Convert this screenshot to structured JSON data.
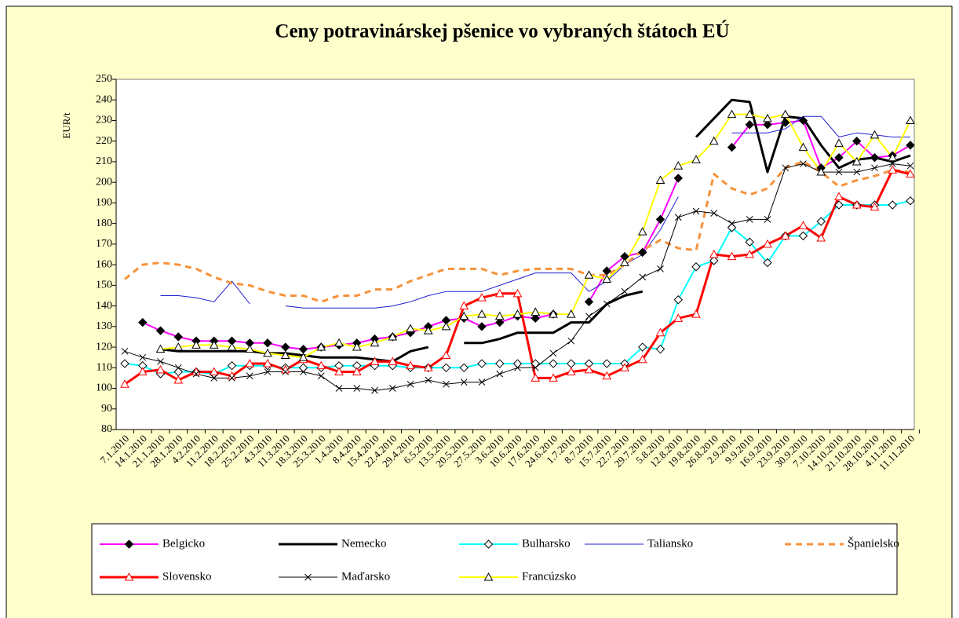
{
  "chart_data": {
    "type": "line",
    "title": "Ceny potravinárskej pšenice vo vybraných štátoch EÚ",
    "y_label": "EUR/t",
    "categories": [
      "7.1.2010",
      "14.1.2010",
      "21.1.2010",
      "28.1.2010",
      "4.2.2010",
      "11.2.2010",
      "18.2.2010",
      "25.2.2010",
      "4.3.2010",
      "11.3.2010",
      "18.3.2010",
      "25.3.2010",
      "1.4.2010",
      "8.4.2010",
      "15.4.2010",
      "22.4.2010",
      "29.4.2010",
      "6.5.2010",
      "13.5.2010",
      "20.5.2010",
      "27.5.2010",
      "3.6.2010",
      "10.6.2010",
      "17.6.2010",
      "24.6.2010",
      "1.7.2010",
      "8.7.2010",
      "15.7.2010",
      "22.7.2010",
      "29.7.2010",
      "5.8.2010",
      "12.8.2010",
      "19.8.2010",
      "26.8.2010",
      "2.9.2010",
      "9.9.2010",
      "16.9.2010",
      "23.9.2010",
      "30.9.2010",
      "7.10.2010",
      "14.10.2010",
      "21.10.2010",
      "28.10.2010",
      "4.11.2010",
      "11.11.2010"
    ],
    "ylim": [
      80,
      250
    ],
    "yticks": [
      80,
      90,
      100,
      110,
      120,
      130,
      140,
      150,
      160,
      170,
      180,
      190,
      200,
      210,
      220,
      230,
      240,
      250
    ],
    "grid": false,
    "legend": "bottom",
    "series": [
      {
        "name": "Belgicko",
        "color": "#ff00ff",
        "line_width": 2,
        "dash": false,
        "marker": "diamond-filled",
        "values": [
          null,
          132,
          128,
          125,
          123,
          123,
          123,
          122,
          122,
          120,
          119,
          120,
          121,
          122,
          124,
          125,
          127,
          130,
          133,
          134,
          130,
          132,
          135,
          134,
          136,
          null,
          142,
          157,
          164,
          166,
          182,
          202,
          null,
          null,
          217,
          228,
          228,
          229,
          230,
          207,
          212,
          220,
          212,
          213,
          218
        ]
      },
      {
        "name": "Nemecko",
        "color": "#000000",
        "line_width": 3,
        "dash": false,
        "marker": "none",
        "values": [
          null,
          null,
          119,
          118,
          118,
          118,
          118,
          118,
          117,
          117,
          116,
          115,
          115,
          115,
          114,
          113,
          118,
          120,
          null,
          122,
          122,
          124,
          127,
          127,
          127,
          132,
          132,
          141,
          145,
          147,
          null,
          null,
          222,
          231,
          240,
          239,
          205,
          232,
          231,
          218,
          207,
          211,
          212,
          210,
          213
        ]
      },
      {
        "name": "Bulharsko",
        "color": "#00ffff",
        "line_width": 2,
        "dash": false,
        "marker": "diamond-open",
        "values": [
          112,
          111,
          107,
          108,
          108,
          107,
          111,
          111,
          111,
          110,
          110,
          110,
          111,
          111,
          111,
          111,
          110,
          110,
          110,
          110,
          112,
          112,
          112,
          112,
          112,
          112,
          112,
          112,
          112,
          120,
          119,
          143,
          159,
          162,
          178,
          171,
          161,
          174,
          174,
          181,
          189,
          189,
          189,
          189,
          191
        ]
      },
      {
        "name": "Taliansko",
        "color": "#1f1fd0",
        "line_width": 1,
        "dash": false,
        "marker": "none",
        "values": [
          null,
          null,
          145,
          145,
          144,
          142,
          152,
          141,
          null,
          140,
          139,
          139,
          139,
          139,
          139,
          140,
          142,
          145,
          147,
          147,
          147,
          150,
          153,
          156,
          156,
          156,
          147,
          152,
          160,
          165,
          177,
          193,
          null,
          null,
          224,
          224,
          224,
          226,
          232,
          232,
          222,
          224,
          223,
          222,
          222
        ]
      },
      {
        "name": "Španielsko",
        "color": "#f7923a",
        "line_width": 3,
        "dash": true,
        "marker": "none",
        "values": [
          153,
          160,
          161,
          160,
          158,
          154,
          151,
          150,
          147,
          145,
          145,
          142,
          145,
          145,
          148,
          148,
          152,
          155,
          158,
          158,
          158,
          155,
          157,
          158,
          158,
          158,
          155,
          155,
          160,
          167,
          172,
          168,
          167,
          204,
          197,
          194,
          197,
          207,
          210,
          205,
          198,
          201,
          203,
          206,
          205
        ]
      },
      {
        "name": "Slovensko",
        "color": "#ff0000",
        "line_width": 3,
        "dash": false,
        "marker": "triangle-open",
        "values": [
          102,
          108,
          109,
          104,
          108,
          108,
          106,
          112,
          112,
          109,
          114,
          111,
          108,
          108,
          113,
          113,
          111,
          110,
          116,
          140,
          144,
          146,
          146,
          105,
          105,
          108,
          109,
          106,
          110,
          114,
          127,
          134,
          136,
          165,
          164,
          165,
          170,
          174,
          179,
          173,
          193,
          189,
          188,
          206,
          204
        ]
      },
      {
        "name": "Maďarsko",
        "color": "#000000",
        "line_width": 1,
        "dash": false,
        "marker": "x",
        "values": [
          118,
          115,
          113,
          110,
          107,
          105,
          105,
          106,
          108,
          108,
          108,
          106,
          100,
          100,
          99,
          100,
          102,
          104,
          102,
          103,
          103,
          107,
          110,
          110,
          117,
          123,
          135,
          141,
          147,
          154,
          158,
          183,
          186,
          185,
          180,
          182,
          182,
          207,
          209,
          205,
          205,
          205,
          207,
          209,
          208
        ]
      },
      {
        "name": "Francúzsko",
        "color": "#ffff00",
        "line_width": 2,
        "dash": false,
        "marker": "triangle-open",
        "values": [
          null,
          null,
          119,
          120,
          121,
          121,
          120,
          119,
          117,
          116,
          115,
          120,
          122,
          120,
          122,
          125,
          129,
          128,
          130,
          135,
          136,
          135,
          136,
          137,
          136,
          136,
          155,
          153,
          161,
          176,
          201,
          208,
          211,
          220,
          233,
          233,
          231,
          233,
          217,
          205,
          219,
          210,
          223,
          212,
          230
        ]
      }
    ]
  }
}
